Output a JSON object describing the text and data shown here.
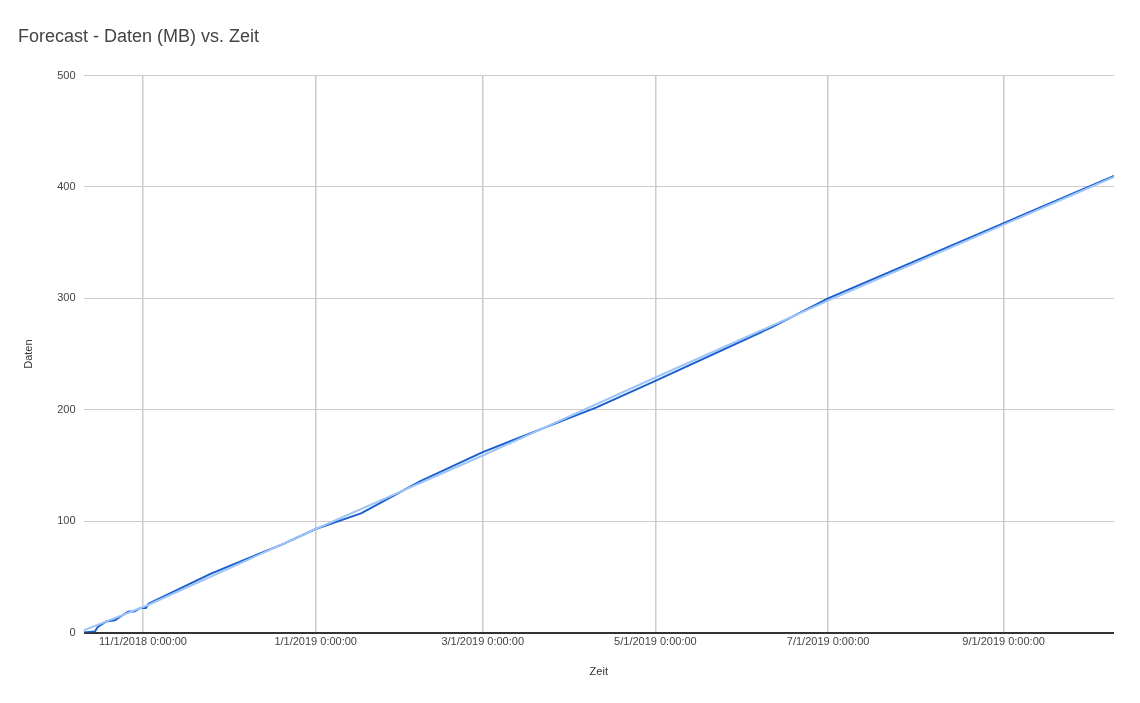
{
  "chart_data": {
    "type": "line",
    "title": "Forecast - Daten (MB) vs. Zeit",
    "xlabel": "Zeit",
    "ylabel": "Daten",
    "xlim": [
      "2018-10-11",
      "2019-10-10"
    ],
    "xticks": [
      {
        "value": "2018-11-01",
        "label": "11/1/2018 0:00:00"
      },
      {
        "value": "2019-01-01",
        "label": "1/1/2019 0:00:00"
      },
      {
        "value": "2019-03-01",
        "label": "3/1/2019 0:00:00"
      },
      {
        "value": "2019-05-01",
        "label": "5/1/2019 0:00:00"
      },
      {
        "value": "2019-07-01",
        "label": "7/1/2019 0:00:00"
      },
      {
        "value": "2019-09-01",
        "label": "9/1/2019 0:00:00"
      }
    ],
    "ylim": [
      0,
      500
    ],
    "yticks": [
      0,
      100,
      200,
      300,
      400,
      500
    ],
    "grid": true,
    "legend": false,
    "marker": "none",
    "line_style": "solid",
    "series": [
      {
        "color": "#9fc5f8",
        "x": [
          "2018-10-11",
          "2018-11-03",
          "2019-01-01",
          "2019-03-01",
          "2019-05-01",
          "2019-07-01",
          "2019-10-10"
        ],
        "values": [
          2,
          25,
          93,
          159,
          229,
          298,
          409
        ]
      },
      {
        "color": "#1a5fd0",
        "x": [
          "2018-10-11",
          "2018-10-15",
          "2018-10-16",
          "2018-10-19",
          "2018-10-22",
          "2018-10-25",
          "2018-10-27",
          "2018-10-29",
          "2018-10-31",
          "2018-11-02",
          "2018-11-03",
          "2018-11-25",
          "2018-12-20",
          "2019-01-01",
          "2019-01-17",
          "2019-02-07",
          "2019-03-01",
          "2019-03-29",
          "2019-04-10",
          "2019-05-01",
          "2019-06-11",
          "2019-07-01",
          "2019-10-10"
        ],
        "values": [
          0,
          1,
          5,
          10,
          11,
          16,
          19,
          19,
          22,
          22,
          26,
          53,
          79,
          93,
          107,
          136,
          162,
          190,
          202,
          226,
          274,
          300,
          410
        ]
      }
    ]
  }
}
